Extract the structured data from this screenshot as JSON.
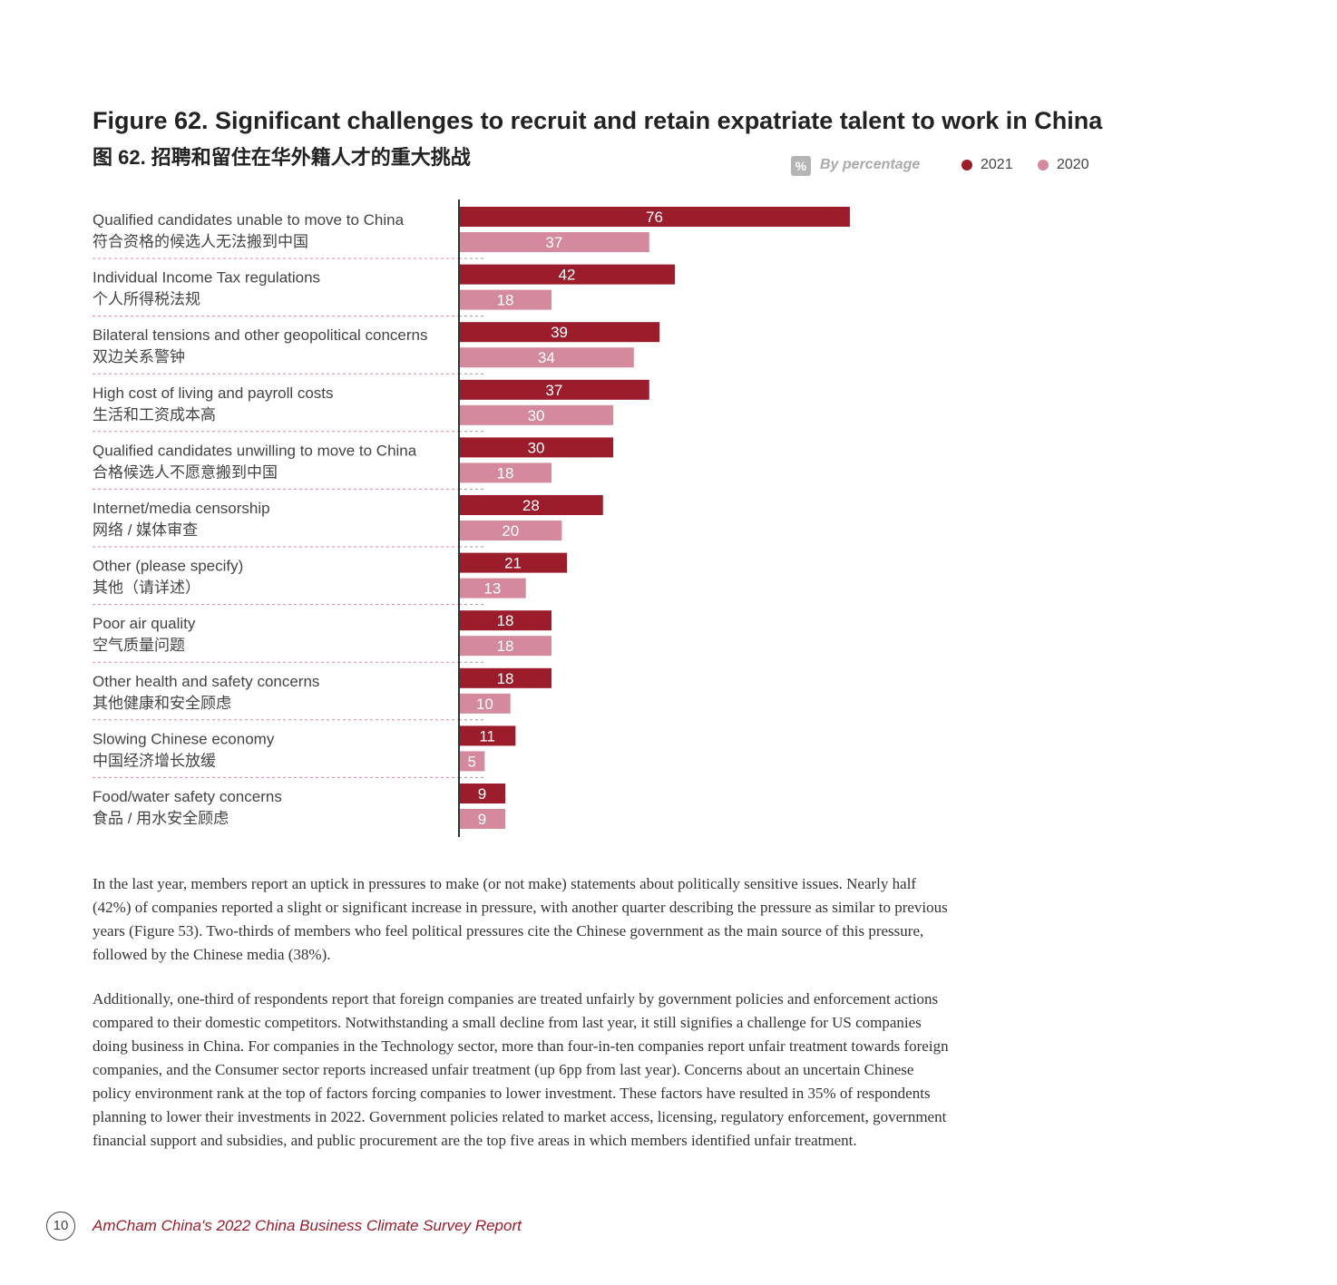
{
  "title_en": "Figure 62. Significant challenges to recruit and retain expatriate talent to work in China",
  "title_zh": "图 62. 招聘和留住在华外籍人才的重大挑战",
  "legend": {
    "percent_icon": "%",
    "by_percentage": "By percentage",
    "series_2021": "2021",
    "series_2020": "2020"
  },
  "colors": {
    "series_2021": "#9b1c2b",
    "series_2020": "#d48a9c",
    "axis": "#333333",
    "divider": "#d48a9c"
  },
  "chart_data": {
    "type": "bar",
    "orientation": "horizontal",
    "title": "Figure 62. Significant challenges to recruit and retain expatriate talent to work in China",
    "unit": "%",
    "categories": [
      {
        "en": "Qualified candidates unable to move to China",
        "zh": "符合资格的候选人无法搬到中国"
      },
      {
        "en": "Individual Income Tax regulations",
        "zh": "个人所得税法规"
      },
      {
        "en": "Bilateral tensions and other geopolitical concerns",
        "zh": "双边关系警钟"
      },
      {
        "en": "High cost of living and payroll costs",
        "zh": "生活和工资成本高"
      },
      {
        "en": "Qualified candidates unwilling to move to China",
        "zh": "合格候选人不愿意搬到中国"
      },
      {
        "en": "Internet/media censorship",
        "zh": "网络 / 媒体审查"
      },
      {
        "en": "Other (please specify)",
        "zh": "其他（请详述）"
      },
      {
        "en": "Poor air quality",
        "zh": "空气质量问题"
      },
      {
        "en": "Other health and safety concerns",
        "zh": "其他健康和安全顾虑"
      },
      {
        "en": "Slowing Chinese economy",
        "zh": "中国经济增长放缓"
      },
      {
        "en": "Food/water safety concerns",
        "zh": "食品 / 用水安全顾虑"
      }
    ],
    "series": [
      {
        "name": "2021",
        "values": [
          76,
          42,
          39,
          37,
          30,
          28,
          21,
          18,
          18,
          11,
          9
        ]
      },
      {
        "name": "2020",
        "values": [
          37,
          18,
          34,
          30,
          18,
          20,
          13,
          18,
          10,
          5,
          9
        ]
      }
    ]
  },
  "paragraphs": [
    "In the last year, members report an uptick in pressures to make (or not make) statements about politically sensitive issues. Nearly half (42%) of companies reported a slight or significant increase in pressure, with another quarter describing the pressure as similar to previous years (Figure 53). Two-thirds of members who feel political pressures cite the Chinese government as the main source of this pressure, followed by the Chinese media (38%).",
    "Additionally, one-third of respondents report that foreign companies are treated unfairly by government policies and enforcement actions compared to their domestic competitors. Notwithstanding a small decline from last year, it still signifies a challenge for US companies doing business in China. For companies in the Technology sector, more than four-in-ten companies report unfair treatment towards foreign companies, and the Consumer sector reports increased unfair treatment (up 6pp from last year). Concerns about an uncertain Chinese policy environment rank at the top of factors forcing companies to lower investment. These factors have resulted in 35% of respondents planning to lower their investments in 2022. Government policies related to market access, licensing, regulatory enforcement, government financial support and subsidies, and public procurement are the top five areas in which members identified unfair treatment."
  ],
  "footer": {
    "page_number": "10",
    "report_title": "AmCham China's 2022 China Business Climate Survey Report"
  }
}
